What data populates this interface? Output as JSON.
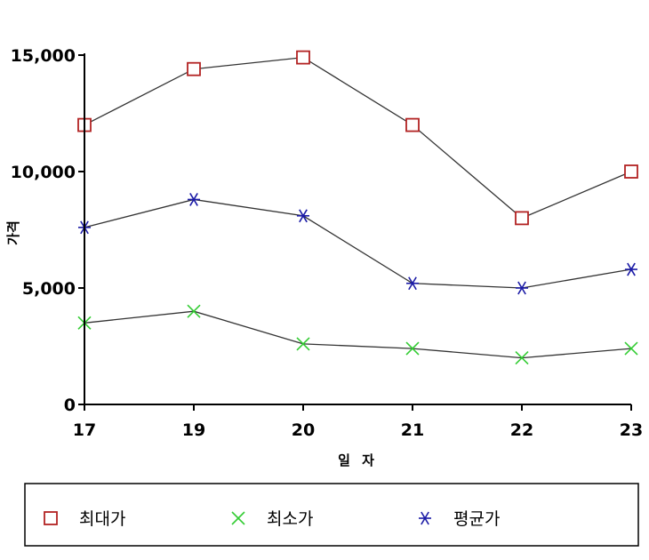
{
  "chart_data": {
    "type": "line",
    "categories": [
      "17",
      "19",
      "20",
      "21",
      "22",
      "23"
    ],
    "xlabel": "일 자",
    "ylabel": "가격",
    "ylim": [
      0,
      15000
    ],
    "yticks": [
      0,
      5000,
      10000,
      15000
    ],
    "ytick_labels": [
      "0",
      "5,000",
      "10,000",
      "15,000"
    ],
    "grid": false,
    "legend_position": "bottom",
    "series": [
      {
        "name": "최대가",
        "values": [
          12000,
          14400,
          14900,
          12000,
          8000,
          10000
        ],
        "color": "#b22222",
        "marker": "square"
      },
      {
        "name": "최소가",
        "values": [
          3500,
          4000,
          2600,
          2400,
          2000,
          2400
        ],
        "color": "#33cc33",
        "marker": "x"
      },
      {
        "name": "평균가",
        "values": [
          7600,
          8800,
          8100,
          5200,
          5000,
          5800
        ],
        "color": "#1a1aa6",
        "marker": "asterisk"
      }
    ]
  }
}
